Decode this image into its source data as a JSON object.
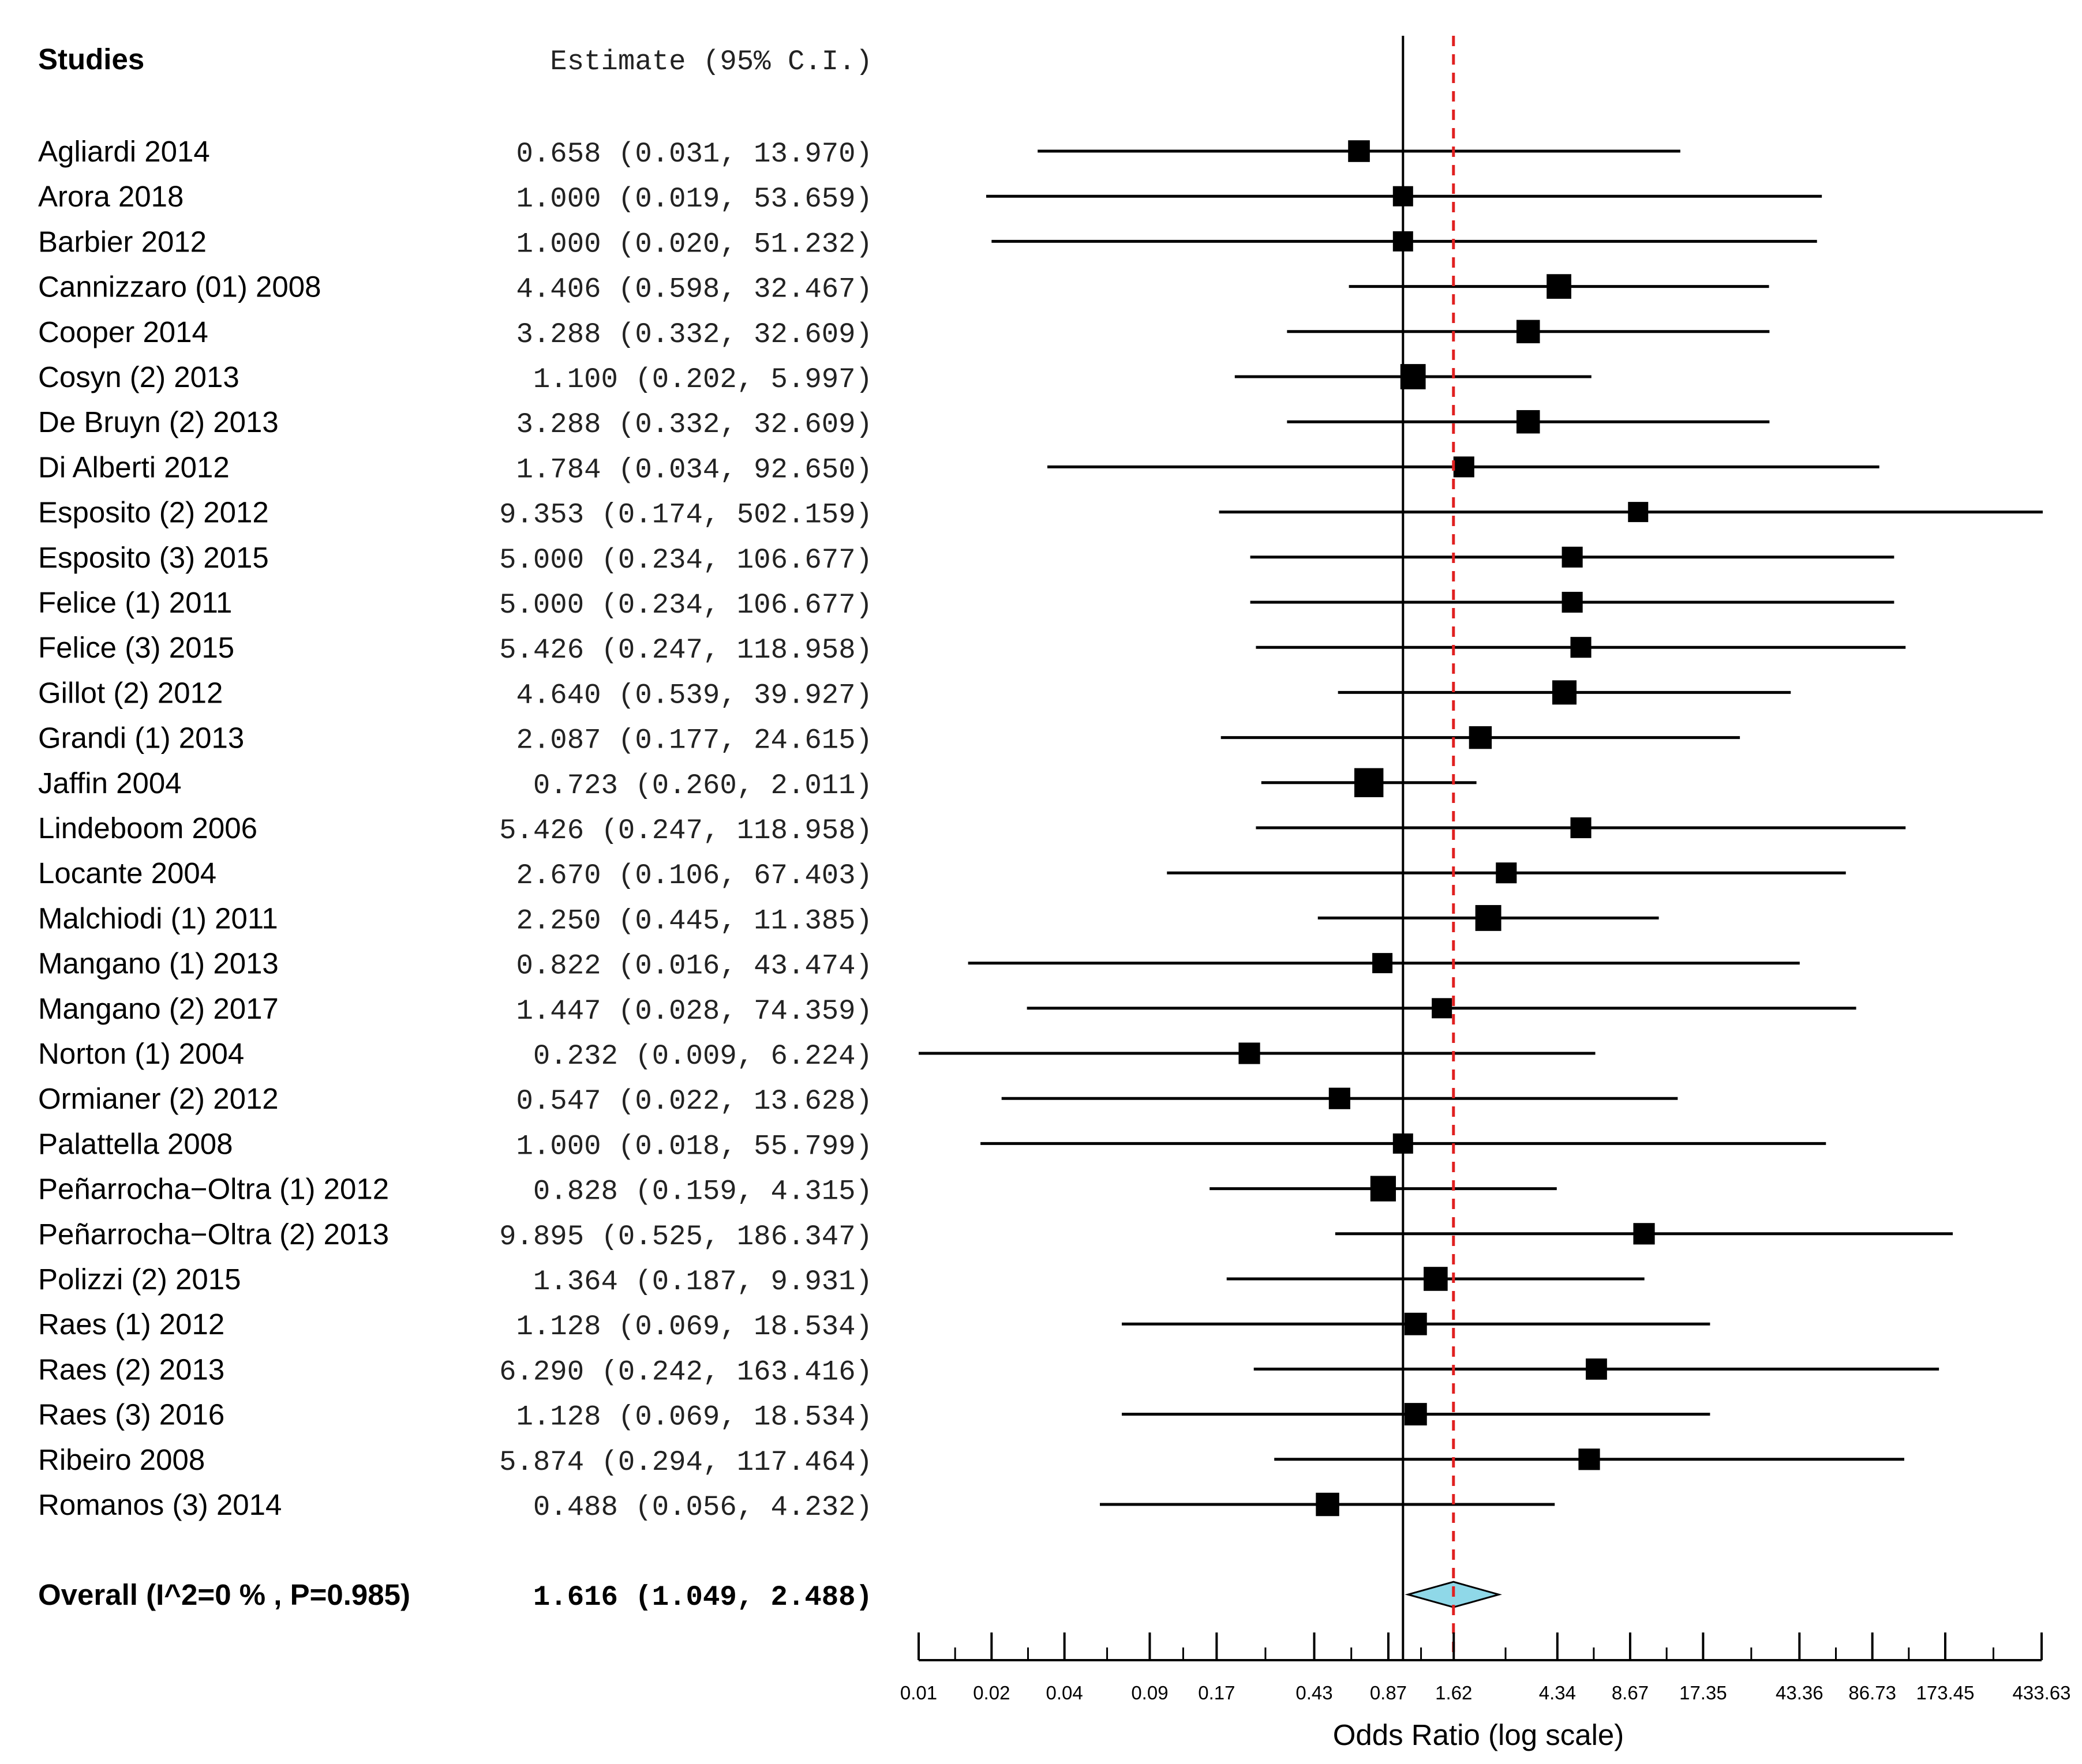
{
  "chart_data": {
    "type": "forest",
    "header": {
      "studies": "Studies",
      "estimate": "Estimate (95% C.I.)"
    },
    "xlabel": "Odds Ratio (log scale)",
    "xlim": [
      0.01,
      433.63
    ],
    "ticks": [
      "0.01",
      "0.02",
      "0.04",
      "0.09",
      "0.17",
      "0.43",
      "0.87",
      "1.62",
      "4.34",
      "8.67",
      "17.35",
      "43.36",
      "86.73",
      "173.45",
      "433.63"
    ],
    "null_line": 1.0,
    "pooled_line": 1.616,
    "pooled_line_color": "#e02020",
    "studies": [
      {
        "name": "Agliardi 2014",
        "est": 0.658,
        "lo": 0.031,
        "hi": 13.97,
        "w": 0.62,
        "text": "0.658 (0.031,  13.970)"
      },
      {
        "name": "Arora 2018",
        "est": 1.0,
        "lo": 0.019,
        "hi": 53.659,
        "w": 0.5,
        "text": "1.000 (0.019,  53.659)"
      },
      {
        "name": "Barbier 2012",
        "est": 1.0,
        "lo": 0.02,
        "hi": 51.232,
        "w": 0.5,
        "text": "1.000 (0.020,  51.232)"
      },
      {
        "name": "Cannizzaro (01) 2008",
        "est": 4.406,
        "lo": 0.598,
        "hi": 32.467,
        "w": 0.85,
        "text": "4.406 (0.598,  32.467)"
      },
      {
        "name": "Cooper 2014",
        "est": 3.288,
        "lo": 0.332,
        "hi": 32.609,
        "w": 0.75,
        "text": "3.288 (0.332,  32.609)"
      },
      {
        "name": "Cosyn (2) 2013",
        "est": 1.1,
        "lo": 0.202,
        "hi": 5.997,
        "w": 0.9,
        "text": "1.100 (0.202,   5.997)"
      },
      {
        "name": "De Bruyn (2) 2013",
        "est": 3.288,
        "lo": 0.332,
        "hi": 32.609,
        "w": 0.75,
        "text": "3.288 (0.332,  32.609)"
      },
      {
        "name": "Di Alberti 2012",
        "est": 1.784,
        "lo": 0.034,
        "hi": 92.65,
        "w": 0.55,
        "text": "1.784 (0.034,  92.650)"
      },
      {
        "name": "Esposito (2) 2012",
        "est": 9.353,
        "lo": 0.174,
        "hi": 502.159,
        "w": 0.5,
        "text": "9.353 (0.174, 502.159)"
      },
      {
        "name": "Esposito (3) 2015",
        "est": 5.0,
        "lo": 0.234,
        "hi": 106.677,
        "w": 0.55,
        "text": "5.000 (0.234, 106.677)"
      },
      {
        "name": "Felice (1) 2011",
        "est": 5.0,
        "lo": 0.234,
        "hi": 106.677,
        "w": 0.55,
        "text": "5.000 (0.234, 106.677)"
      },
      {
        "name": "Felice (3) 2015",
        "est": 5.426,
        "lo": 0.247,
        "hi": 118.958,
        "w": 0.55,
        "text": "5.426 (0.247, 118.958)"
      },
      {
        "name": "Gillot (2) 2012",
        "est": 4.64,
        "lo": 0.539,
        "hi": 39.927,
        "w": 0.82,
        "text": "4.640 (0.539,  39.927)"
      },
      {
        "name": "Grandi (1) 2013",
        "est": 2.087,
        "lo": 0.177,
        "hi": 24.615,
        "w": 0.7,
        "text": "2.087 (0.177,  24.615)"
      },
      {
        "name": "Jaffin 2004",
        "est": 0.723,
        "lo": 0.26,
        "hi": 2.011,
        "w": 1.2,
        "text": "0.723 (0.260,   2.011)"
      },
      {
        "name": "Lindeboom 2006",
        "est": 5.426,
        "lo": 0.247,
        "hi": 118.958,
        "w": 0.55,
        "text": "5.426 (0.247, 118.958)"
      },
      {
        "name": "Locante 2004",
        "est": 2.67,
        "lo": 0.106,
        "hi": 67.403,
        "w": 0.55,
        "text": "2.670 (0.106,  67.403)"
      },
      {
        "name": "Malchiodi (1) 2011",
        "est": 2.25,
        "lo": 0.445,
        "hi": 11.385,
        "w": 0.95,
        "text": "2.250 (0.445,  11.385)"
      },
      {
        "name": "Mangano (1) 2013",
        "est": 0.822,
        "lo": 0.016,
        "hi": 43.474,
        "w": 0.5,
        "text": "0.822 (0.016,  43.474)"
      },
      {
        "name": "Mangano (2) 2017",
        "est": 1.447,
        "lo": 0.028,
        "hi": 74.359,
        "w": 0.5,
        "text": "1.447 (0.028,  74.359)"
      },
      {
        "name": "Norton (1) 2004",
        "est": 0.232,
        "lo": 0.009,
        "hi": 6.224,
        "w": 0.6,
        "text": "0.232 (0.009,   6.224)"
      },
      {
        "name": "Ormianer (2) 2012",
        "est": 0.547,
        "lo": 0.022,
        "hi": 13.628,
        "w": 0.6,
        "text": "0.547 (0.022,  13.628)"
      },
      {
        "name": "Palattella 2008",
        "est": 1.0,
        "lo": 0.018,
        "hi": 55.799,
        "w": 0.5,
        "text": "1.000 (0.018,  55.799)"
      },
      {
        "name": "Peñarrocha−Oltra (1) 2012",
        "est": 0.828,
        "lo": 0.159,
        "hi": 4.315,
        "w": 0.92,
        "text": "0.828 (0.159,   4.315)"
      },
      {
        "name": "Peñarrocha−Oltra (2) 2013",
        "est": 9.895,
        "lo": 0.525,
        "hi": 186.347,
        "w": 0.6,
        "text": "9.895 (0.525, 186.347)"
      },
      {
        "name": "Polizzi (2) 2015",
        "est": 1.364,
        "lo": 0.187,
        "hi": 9.931,
        "w": 0.8,
        "text": "1.364 (0.187,   9.931)"
      },
      {
        "name": "Raes (1) 2012",
        "est": 1.128,
        "lo": 0.069,
        "hi": 18.534,
        "w": 0.68,
        "text": "1.128 (0.069,  18.534)"
      },
      {
        "name": "Raes (2) 2013",
        "est": 6.29,
        "lo": 0.242,
        "hi": 163.416,
        "w": 0.58,
        "text": "6.290 (0.242, 163.416)"
      },
      {
        "name": "Raes (3) 2016",
        "est": 1.128,
        "lo": 0.069,
        "hi": 18.534,
        "w": 0.68,
        "text": "1.128 (0.069,  18.534)"
      },
      {
        "name": "Ribeiro 2008",
        "est": 5.874,
        "lo": 0.294,
        "hi": 117.464,
        "w": 0.6,
        "text": "5.874 (0.294, 117.464)"
      },
      {
        "name": "Romanos (3) 2014",
        "est": 0.488,
        "lo": 0.056,
        "hi": 4.232,
        "w": 0.75,
        "text": "0.488 (0.056,   4.232)"
      }
    ],
    "overall": {
      "name": "Overall (I^2=0 % , P=0.985)",
      "est": 1.616,
      "lo": 1.049,
      "hi": 2.488,
      "text": "1.616 (1.049,   2.488)",
      "diamond_color": "#8fd8e8"
    }
  }
}
